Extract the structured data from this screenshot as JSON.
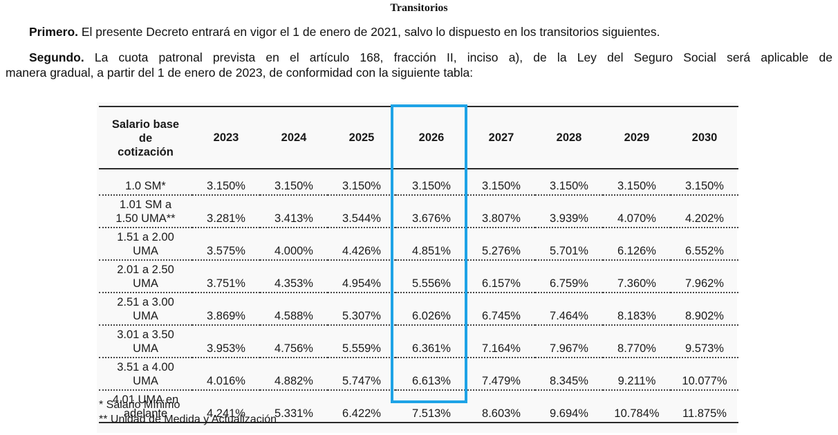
{
  "heading": "Transitorios",
  "paragraphs": {
    "primero_lead": "Primero.",
    "primero_text": " El presente Decreto entrará en vigor el 1 de enero de 2021, salvo lo dispuesto en los transitorios siguientes.",
    "segundo_lead": "Segundo.",
    "segundo_text_line1": " La cuota patronal prevista en el artículo 168, fracción II, inciso a), de la Ley del Seguro Social será aplicable de",
    "segundo_text_line2": "manera gradual, a partir del 1 de enero de 2023, de conformidad con la siguiente tabla:"
  },
  "table": {
    "header_label_lines": [
      "Salario base",
      "de",
      "cotización"
    ],
    "years": [
      "2023",
      "2024",
      "2025",
      "2026",
      "2027",
      "2028",
      "2029",
      "2030"
    ],
    "highlighted_year": "2026",
    "highlight_color": "#1ea3e6",
    "rows": [
      {
        "label_lines": [
          "1.0 SM*"
        ],
        "values": [
          "3.150%",
          "3.150%",
          "3.150%",
          "3.150%",
          "3.150%",
          "3.150%",
          "3.150%",
          "3.150%"
        ]
      },
      {
        "label_lines": [
          "1.01 SM a",
          "1.50 UMA**"
        ],
        "values": [
          "3.281%",
          "3.413%",
          "3.544%",
          "3.676%",
          "3.807%",
          "3.939%",
          "4.070%",
          "4.202%"
        ]
      },
      {
        "label_lines": [
          "1.51 a 2.00",
          "UMA"
        ],
        "values": [
          "3.575%",
          "4.000%",
          "4.426%",
          "4.851%",
          "5.276%",
          "5.701%",
          "6.126%",
          "6.552%"
        ]
      },
      {
        "label_lines": [
          "2.01 a 2.50",
          "UMA"
        ],
        "values": [
          "3.751%",
          "4.353%",
          "4.954%",
          "5.556%",
          "6.157%",
          "6.759%",
          "7.360%",
          "7.962%"
        ]
      },
      {
        "label_lines": [
          "2.51 a 3.00",
          "UMA"
        ],
        "values": [
          "3.869%",
          "4.588%",
          "5.307%",
          "6.026%",
          "6.745%",
          "7.464%",
          "8.183%",
          "8.902%"
        ]
      },
      {
        "label_lines": [
          "3.01 a 3.50",
          "UMA"
        ],
        "values": [
          "3.953%",
          "4.756%",
          "5.559%",
          "6.361%",
          "7.164%",
          "7.967%",
          "8.770%",
          "9.573%"
        ]
      },
      {
        "label_lines": [
          "3.51 a 4.00",
          "UMA"
        ],
        "values": [
          "4.016%",
          "4.882%",
          "5.747%",
          "6.613%",
          "7.479%",
          "8.345%",
          "9.211%",
          "10.077%"
        ]
      },
      {
        "label_lines": [
          "4.01 UMA en",
          "adelante"
        ],
        "values": [
          "4.241%",
          "5.331%",
          "6.422%",
          "7.513%",
          "8.603%",
          "9.694%",
          "10.784%",
          "11.875%"
        ]
      }
    ]
  },
  "footnotes": [
    "* Salario Mínimo",
    "** Unidad de Medida y Actualización"
  ]
}
